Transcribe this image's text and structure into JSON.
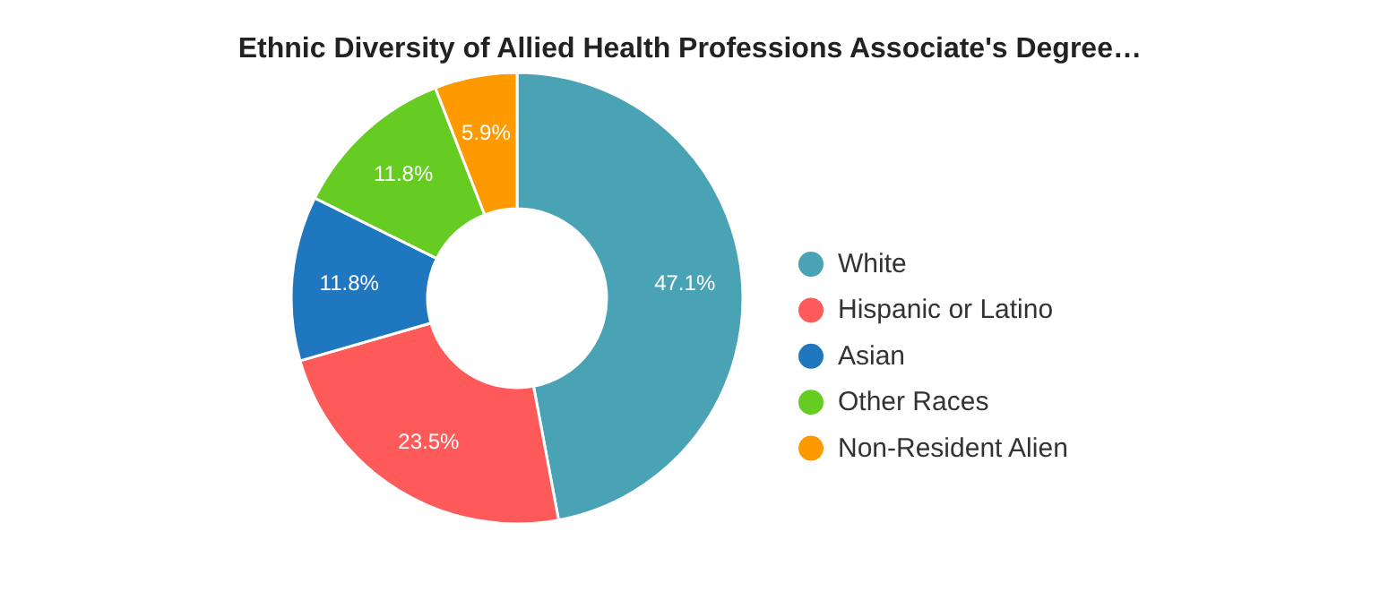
{
  "chart_data": {
    "type": "donut",
    "title": "Ethnic Diversity of Allied Health Professions Associate's Degree…",
    "categories": [
      "White",
      "Hispanic or Latino",
      "Asian",
      "Other Races",
      "Non-Resident Alien"
    ],
    "values": [
      47.1,
      23.5,
      11.8,
      11.8,
      5.9
    ],
    "colors": [
      "#4aa3b5",
      "#ff5a5a",
      "#1f77c0",
      "#66cc22",
      "#ff9900"
    ],
    "value_labels": [
      "47.1%",
      "23.5%",
      "11.8%",
      "11.8%",
      "5.9%"
    ],
    "legend": "right"
  }
}
